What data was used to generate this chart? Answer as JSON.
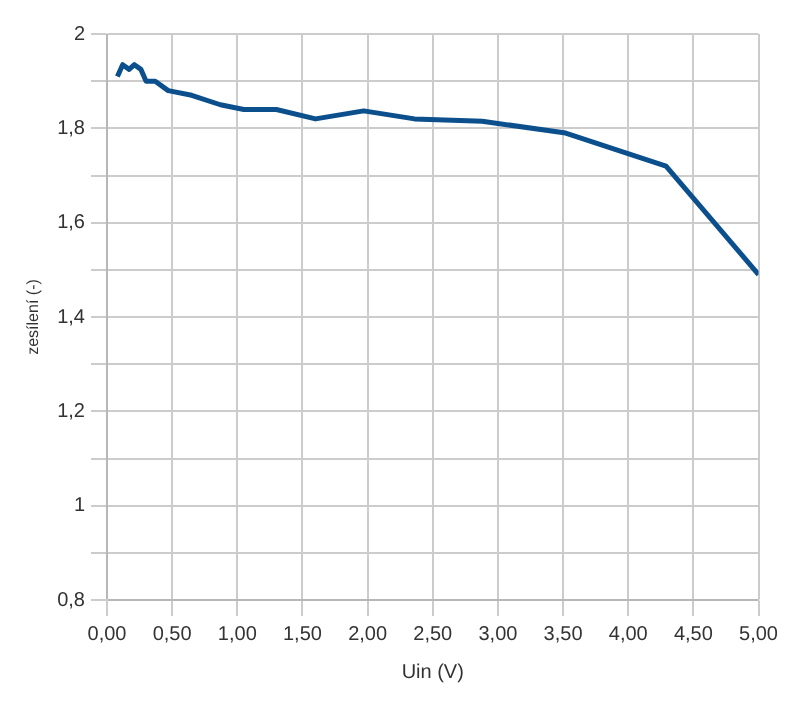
{
  "chart_data": {
    "type": "line",
    "xlabel": "Uin (V)",
    "ylabel": "zesílení (-)",
    "series": [
      {
        "color": "#0b4f8c",
        "x": [
          0.08,
          0.12,
          0.17,
          0.21,
          0.26,
          0.3,
          0.37,
          0.47,
          0.65,
          0.87,
          1.05,
          1.3,
          1.6,
          1.97,
          2.36,
          2.88,
          3.52,
          4.29,
          5.0
        ],
        "values": [
          1.91,
          1.935,
          1.925,
          1.935,
          1.925,
          1.9,
          1.9,
          1.88,
          1.87,
          1.85,
          1.84,
          1.84,
          1.82,
          1.837,
          1.82,
          1.815,
          1.79,
          1.72,
          1.49
        ]
      }
    ],
    "xlim": [
      0,
      5
    ],
    "xticks": [
      {
        "value": 0,
        "label": "0,00"
      },
      {
        "value": 0.5,
        "label": "0,50"
      },
      {
        "value": 1,
        "label": "1,00"
      },
      {
        "value": 1.5,
        "label": "1,50"
      },
      {
        "value": 2,
        "label": "2,00"
      },
      {
        "value": 2.5,
        "label": "2,50"
      },
      {
        "value": 3,
        "label": "3,00"
      },
      {
        "value": 3.5,
        "label": "3,50"
      },
      {
        "value": 4,
        "label": "4,00"
      },
      {
        "value": 4.5,
        "label": "4,50"
      },
      {
        "value": 5,
        "label": "5,00"
      }
    ],
    "ylim": [
      0.8,
      2
    ],
    "yticks": [
      {
        "value": 0.8,
        "label": "0,8"
      },
      {
        "value": 0.9,
        "label": null
      },
      {
        "value": 1,
        "label": "1"
      },
      {
        "value": 1.1,
        "label": null
      },
      {
        "value": 1.2,
        "label": "1,2"
      },
      {
        "value": 1.3,
        "label": null
      },
      {
        "value": 1.4,
        "label": "1,4"
      },
      {
        "value": 1.5,
        "label": null
      },
      {
        "value": 1.6,
        "label": "1,6"
      },
      {
        "value": 1.7,
        "label": null
      },
      {
        "value": 1.8,
        "label": "1,8"
      },
      {
        "value": 1.9,
        "label": null
      },
      {
        "value": 2,
        "label": "2"
      }
    ],
    "grid": true,
    "legend": false,
    "marker": "none",
    "line_style": "solid"
  }
}
